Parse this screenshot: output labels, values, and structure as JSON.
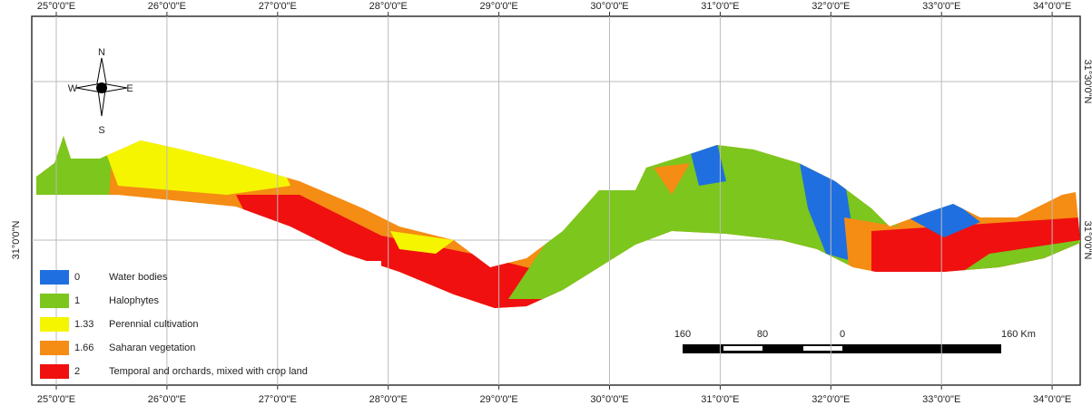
{
  "map": {
    "longitude_labels_top": [
      "25°0'0\"E",
      "26°0'0\"E",
      "27°0'0\"E",
      "28°0'0\"E",
      "29°0'0\"E",
      "30°0'0\"E",
      "31°0'0\"E",
      "32°0'0\"E",
      "33°0'0\"E",
      "34°0'0\"E"
    ],
    "longitude_labels_bottom": [
      "25°0'0\"E",
      "26°0'0\"E",
      "27°0'0\"E",
      "28°0'0\"E",
      "29°0'0\"E",
      "30°0'0\"E",
      "31°0'0\"E",
      "32°0'0\"E",
      "33°0'0\"E",
      "34°0'0\"E"
    ],
    "latitude_labels_left": [
      "31°0'0\"N"
    ],
    "latitude_labels_right": [
      "31°30'0\"N",
      "31°0'0\"N"
    ],
    "compass": {
      "n": "N",
      "s": "S",
      "e": "E",
      "w": "W"
    },
    "legend": [
      {
        "code": "0",
        "label": "Water bodies",
        "color": "#1f6fe0"
      },
      {
        "code": "1",
        "label": "Halophytes",
        "color": "#7cc61e"
      },
      {
        "code": "1.33",
        "label": "Perennial cultivation",
        "color": "#f5f500"
      },
      {
        "code": "1.66",
        "label": "Saharan vegetation",
        "color": "#f58c14"
      },
      {
        "code": "2",
        "label": "Temporal and orchards, mixed with crop land",
        "color": "#f01010"
      }
    ],
    "scale_bar": [
      "160",
      "80",
      "0",
      "160 Km"
    ]
  }
}
